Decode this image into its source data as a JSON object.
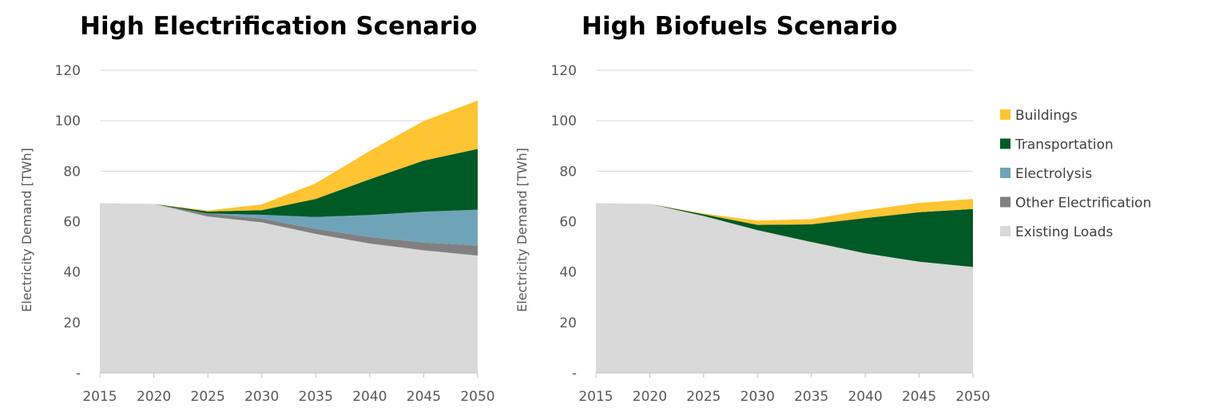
{
  "chart_data": [
    {
      "type": "area",
      "stacked": true,
      "title": "High Electrification Scenario",
      "ylabel": "Electricity Demand [TWh]",
      "xlabel": "",
      "x": [
        2015,
        2020,
        2025,
        2030,
        2035,
        2040,
        2045,
        2050
      ],
      "ylim": [
        0,
        120
      ],
      "yticks": [
        0,
        20,
        40,
        60,
        80,
        100,
        120
      ],
      "ytick_labels": [
        "-",
        "20",
        "40",
        "60",
        "80",
        "100",
        "120"
      ],
      "grid": true,
      "legend": "none",
      "series": [
        {
          "name": "Existing Loads",
          "color": "#d9d9d9",
          "values": [
            67.3,
            67,
            62,
            59.7,
            55.1,
            51.3,
            48.6,
            46.5
          ]
        },
        {
          "name": "Other Electrification",
          "color": "#808080",
          "values": [
            0,
            0,
            1.2,
            1.5,
            2,
            2.6,
            3.1,
            4
          ]
        },
        {
          "name": "Electrolysis",
          "color": "#6fa4b8",
          "values": [
            0,
            0,
            0,
            1.5,
            4.7,
            8.7,
            12.2,
            14.2
          ]
        },
        {
          "name": "Transportation",
          "color": "#005a26",
          "values": [
            0,
            0,
            0.8,
            1.8,
            7.2,
            14.2,
            20.3,
            24.1
          ]
        },
        {
          "name": "Buildings",
          "color": "#fec432",
          "values": [
            0,
            0,
            0.4,
            2.3,
            6.2,
            11.2,
            15.7,
            19.2
          ]
        }
      ]
    },
    {
      "type": "area",
      "stacked": true,
      "title": "High Biofuels Scenario",
      "ylabel": "Electricity Demand [TWh]",
      "xlabel": "",
      "x": [
        2015,
        2020,
        2025,
        2030,
        2035,
        2040,
        2045,
        2050
      ],
      "ylim": [
        0,
        120
      ],
      "yticks": [
        0,
        20,
        40,
        60,
        80,
        100,
        120
      ],
      "ytick_labels": [
        "-",
        "20",
        "40",
        "60",
        "80",
        "100",
        "120"
      ],
      "grid": true,
      "legend": "right",
      "series": [
        {
          "name": "Existing Loads",
          "color": "#d9d9d9",
          "values": [
            67.3,
            67,
            62.2,
            56.6,
            51.9,
            47.4,
            44.1,
            42
          ]
        },
        {
          "name": "Other Electrification",
          "color": "#808080",
          "values": [
            0,
            0,
            0,
            0,
            0,
            0,
            0,
            0
          ]
        },
        {
          "name": "Electrolysis",
          "color": "#6fa4b8",
          "values": [
            0,
            0,
            0,
            0,
            0,
            0,
            0,
            0
          ]
        },
        {
          "name": "Transportation",
          "color": "#005a26",
          "values": [
            0,
            0,
            0.7,
            2.1,
            7,
            14,
            19.6,
            23
          ]
        },
        {
          "name": "Buildings",
          "color": "#fec432",
          "values": [
            0,
            0,
            0.3,
            1.7,
            2.1,
            3.1,
            3.7,
            4
          ]
        }
      ]
    }
  ],
  "legend": {
    "items": [
      {
        "label": "Buildings",
        "color": "#fec432"
      },
      {
        "label": "Transportation",
        "color": "#005a26"
      },
      {
        "label": "Electrolysis",
        "color": "#6fa4b8"
      },
      {
        "label": "Other Electrification",
        "color": "#808080"
      },
      {
        "label": "Existing Loads",
        "color": "#d9d9d9"
      }
    ]
  }
}
